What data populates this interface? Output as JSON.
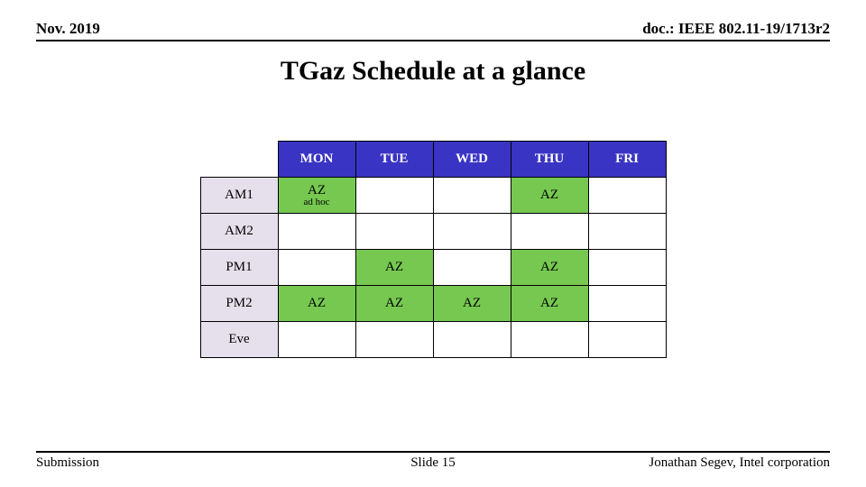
{
  "header": {
    "left": "Nov. 2019",
    "right": "doc.: IEEE 802.11-19/1713r2"
  },
  "title": "TGaz Schedule at a glance",
  "footer": {
    "left": "Submission",
    "center": "Slide 15",
    "right": "Jonathan Segev, Intel corporation"
  },
  "colors": {
    "header_bg": "#3a34c4",
    "header_fg": "#ffffff",
    "row_label_bg": "#e6e0ec",
    "cell_green": "#76c850",
    "cell_empty": "#ffffff",
    "border": "#000000"
  },
  "table": {
    "columns": [
      "MON",
      "TUE",
      "WED",
      "THU",
      "FRI"
    ],
    "row_labels": [
      "AM1",
      "AM2",
      "PM1",
      "PM2",
      "Eve"
    ],
    "cells": [
      [
        {
          "text": "AZ",
          "sub": "ad hoc",
          "fill": "green"
        },
        {
          "text": "",
          "fill": "empty"
        },
        {
          "text": "",
          "fill": "empty"
        },
        {
          "text": "AZ",
          "fill": "green"
        },
        {
          "text": "",
          "fill": "empty"
        }
      ],
      [
        {
          "text": "",
          "fill": "empty"
        },
        {
          "text": "",
          "fill": "empty"
        },
        {
          "text": "",
          "fill": "empty"
        },
        {
          "text": "",
          "fill": "empty"
        },
        {
          "text": "",
          "fill": "empty"
        }
      ],
      [
        {
          "text": "",
          "fill": "empty"
        },
        {
          "text": "AZ",
          "fill": "green"
        },
        {
          "text": "",
          "fill": "empty"
        },
        {
          "text": "AZ",
          "fill": "green"
        },
        {
          "text": "",
          "fill": "empty"
        }
      ],
      [
        {
          "text": "AZ",
          "fill": "green"
        },
        {
          "text": "AZ",
          "fill": "green"
        },
        {
          "text": "AZ",
          "fill": "green"
        },
        {
          "text": "AZ",
          "fill": "green"
        },
        {
          "text": "",
          "fill": "empty"
        }
      ],
      [
        {
          "text": "",
          "fill": "empty"
        },
        {
          "text": "",
          "fill": "empty"
        },
        {
          "text": "",
          "fill": "empty"
        },
        {
          "text": "",
          "fill": "empty"
        },
        {
          "text": "",
          "fill": "empty"
        }
      ]
    ]
  }
}
